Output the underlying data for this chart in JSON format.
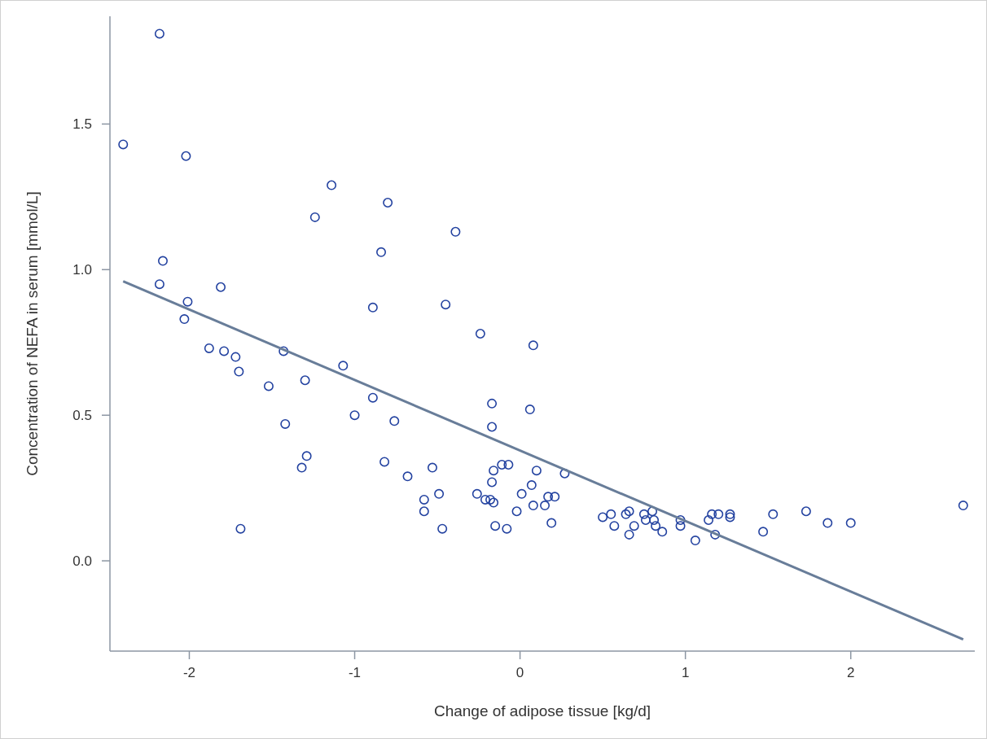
{
  "chart_data": {
    "type": "scatter",
    "xlabel": "Change of adipose tissue [kg/d]",
    "ylabel": "Concentration of NEFA in serum [mmol/L]",
    "xlim": [
      -2.48,
      2.75
    ],
    "ylim": [
      -0.31,
      1.87
    ],
    "xticks": [
      -2,
      -1,
      0,
      1,
      2
    ],
    "yticks": [
      {
        "value": 0,
        "label": "0.0"
      },
      0.5,
      {
        "value": 1,
        "label": "1.0"
      },
      1.5
    ],
    "series": [
      {
        "color": "#2342a0",
        "marker": "circle",
        "x": [
          -2.18,
          -2.4,
          -2.02,
          -1.14,
          -0.8,
          -1.24,
          -0.39,
          -0.84,
          -2.16,
          -2.18,
          -1.81,
          -2.01,
          -0.89,
          -0.45,
          -2.03,
          -0.24,
          0.08,
          -1.88,
          -1.79,
          -1.72,
          -1.43,
          -1.07,
          -1.7,
          -1.3,
          -1.52,
          -0.17,
          -0.89,
          0.06,
          -1.0,
          -0.76,
          -1.42,
          -0.17,
          -1.29,
          -1.32,
          -0.82,
          -0.68,
          -0.53,
          -1.69,
          -0.58,
          -0.58,
          -0.49,
          -0.47,
          -0.26,
          -0.21,
          -0.18,
          -0.16,
          -0.17,
          -0.16,
          -0.11,
          -0.07,
          -0.15,
          -0.08,
          -0.02,
          0.01,
          0.07,
          0.08,
          0.1,
          0.15,
          0.17,
          0.21,
          0.19,
          0.27,
          0.5,
          0.55,
          0.57,
          0.64,
          0.66,
          0.66,
          0.69,
          0.75,
          0.8,
          0.76,
          0.81,
          0.82,
          0.86,
          0.97,
          0.97,
          1.06,
          1.14,
          1.16,
          1.2,
          1.18,
          1.27,
          1.27,
          1.47,
          1.53,
          1.73,
          1.86,
          2.0,
          2.68
        ],
        "values": [
          1.81,
          1.43,
          1.39,
          1.29,
          1.23,
          1.18,
          1.13,
          1.06,
          1.03,
          0.95,
          0.94,
          0.89,
          0.87,
          0.88,
          0.83,
          0.78,
          0.74,
          0.73,
          0.72,
          0.7,
          0.72,
          0.67,
          0.65,
          0.62,
          0.6,
          0.54,
          0.56,
          0.52,
          0.5,
          0.48,
          0.47,
          0.46,
          0.36,
          0.32,
          0.34,
          0.29,
          0.32,
          0.11,
          0.21,
          0.17,
          0.23,
          0.11,
          0.23,
          0.21,
          0.21,
          0.2,
          0.27,
          0.31,
          0.33,
          0.33,
          0.12,
          0.11,
          0.17,
          0.23,
          0.26,
          0.19,
          0.31,
          0.19,
          0.22,
          0.22,
          0.13,
          0.3,
          0.15,
          0.16,
          0.12,
          0.16,
          0.17,
          0.09,
          0.12,
          0.16,
          0.17,
          0.14,
          0.14,
          0.12,
          0.1,
          0.14,
          0.12,
          0.07,
          0.14,
          0.16,
          0.16,
          0.09,
          0.16,
          0.15,
          0.1,
          0.16,
          0.17,
          0.13,
          0.13,
          0.19
        ]
      },
      {
        "type": "line",
        "color": "#687d99",
        "x": [
          -2.4,
          2.68
        ],
        "values": [
          0.96,
          -0.27
        ]
      }
    ]
  }
}
